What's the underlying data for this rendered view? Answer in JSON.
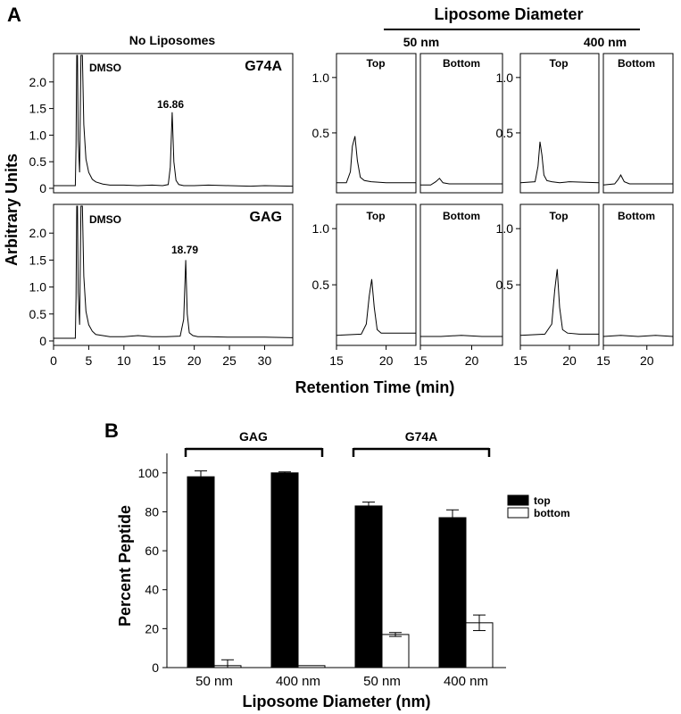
{
  "panel_a": {
    "letter": "A",
    "left_title": "No Liposomes",
    "right_title": "Liposome Diameter",
    "size_50": "50 nm",
    "size_400": "400 nm",
    "ylabel": "Arbitrary Units",
    "xlabel": "Retention Time (min)",
    "dmso_label": "DMSO",
    "top_label": "Top",
    "bottom_label": "Bottom",
    "rows": [
      {
        "peptide": "G74A",
        "peak_time": "16.86"
      },
      {
        "peptide": "GAG",
        "peak_time": "18.79"
      }
    ]
  },
  "panel_b": {
    "letter": "B",
    "group_gag": "GAG",
    "group_g74a": "G74A",
    "legend_top": "top",
    "legend_bottom": "bottom"
  },
  "chart_data": [
    {
      "id": "no-liposomes-g74a",
      "type": "line",
      "panel": "A",
      "xlim": [
        0,
        34
      ],
      "ylim": [
        0,
        2.5
      ],
      "xticks": [
        0,
        5,
        10,
        15,
        20,
        25,
        30
      ],
      "yticks": [
        0,
        0.5,
        1.0,
        1.5,
        2.0
      ],
      "ytick_labels": [
        "0",
        "0.5",
        "1.0",
        "1.5",
        "2.0"
      ],
      "series": [
        {
          "x": [
            0,
            3.1,
            3.2,
            3.3,
            3.4,
            3.5,
            3.7,
            3.9,
            4.1,
            4.3,
            4.6,
            5.0,
            5.5,
            6.0,
            7.0,
            8.0,
            10.0,
            12.0,
            14.0,
            15.5,
            16.3,
            16.6,
            16.86,
            17.1,
            17.4,
            17.8,
            18.5,
            20,
            22,
            25,
            28,
            30,
            34
          ],
          "y": [
            0.05,
            0.05,
            0.8,
            2.5,
            2.5,
            0.9,
            0.3,
            2.5,
            2.5,
            1.2,
            0.55,
            0.3,
            0.17,
            0.12,
            0.08,
            0.06,
            0.06,
            0.05,
            0.06,
            0.05,
            0.07,
            0.4,
            1.43,
            0.5,
            0.15,
            0.07,
            0.05,
            0.05,
            0.06,
            0.05,
            0.04,
            0.05,
            0.04
          ]
        }
      ]
    },
    {
      "id": "no-liposomes-gag",
      "type": "line",
      "panel": "A",
      "xlim": [
        0,
        34
      ],
      "ylim": [
        0,
        2.5
      ],
      "xticks": [
        0,
        5,
        10,
        15,
        20,
        25,
        30
      ],
      "yticks": [
        0,
        0.5,
        1.0,
        1.5,
        2.0
      ],
      "ytick_labels": [
        "0",
        "0.5",
        "1.0",
        "1.5",
        "2.0"
      ],
      "series": [
        {
          "x": [
            0,
            3.1,
            3.2,
            3.3,
            3.4,
            3.5,
            3.7,
            3.9,
            4.1,
            4.3,
            4.6,
            5.0,
            5.5,
            6.0,
            7.0,
            8.0,
            10.0,
            12.0,
            14.0,
            16.0,
            18.0,
            18.5,
            18.79,
            19.0,
            19.3,
            19.8,
            20.5,
            22,
            25,
            28,
            30,
            34
          ],
          "y": [
            0.05,
            0.05,
            0.8,
            2.5,
            2.5,
            0.9,
            0.3,
            2.5,
            2.5,
            1.2,
            0.55,
            0.3,
            0.18,
            0.12,
            0.1,
            0.08,
            0.08,
            0.1,
            0.08,
            0.08,
            0.09,
            0.4,
            1.5,
            0.5,
            0.15,
            0.1,
            0.08,
            0.08,
            0.07,
            0.07,
            0.07,
            0.06
          ]
        }
      ]
    },
    {
      "id": "g74a-50nm-top",
      "type": "line",
      "panel": "A",
      "xlim": [
        15,
        23
      ],
      "ylim": [
        0,
        1.2
      ],
      "xticks": [
        15,
        20
      ],
      "yticks": [
        0.5,
        1.0
      ],
      "ytick_labels": [
        "0.5",
        "1.0"
      ],
      "series": [
        {
          "x": [
            15,
            16.0,
            16.4,
            16.6,
            16.86,
            17.1,
            17.4,
            17.8,
            18.5,
            20,
            23
          ],
          "y": [
            0.05,
            0.05,
            0.15,
            0.38,
            0.47,
            0.25,
            0.1,
            0.07,
            0.06,
            0.05,
            0.05
          ]
        }
      ]
    },
    {
      "id": "g74a-50nm-bottom",
      "type": "line",
      "panel": "A",
      "xlim": [
        15,
        23
      ],
      "ylim": [
        0,
        1.2
      ],
      "xticks": [
        15,
        20
      ],
      "series": [
        {
          "x": [
            15,
            16.0,
            16.5,
            16.86,
            17.2,
            17.8,
            20,
            23
          ],
          "y": [
            0.03,
            0.03,
            0.06,
            0.09,
            0.05,
            0.04,
            0.04,
            0.04
          ]
        }
      ]
    },
    {
      "id": "g74a-400nm-top",
      "type": "line",
      "panel": "A",
      "xlim": [
        15,
        23
      ],
      "ylim": [
        0,
        1.2
      ],
      "xticks": [
        15,
        20
      ],
      "yticks": [
        0.5,
        1.0
      ],
      "ytick_labels": [
        "0.5",
        "1.0"
      ],
      "series": [
        {
          "x": [
            15,
            16.5,
            16.8,
            17.0,
            17.2,
            17.4,
            17.7,
            18.2,
            19,
            20,
            23
          ],
          "y": [
            0.05,
            0.06,
            0.2,
            0.42,
            0.3,
            0.12,
            0.07,
            0.06,
            0.05,
            0.06,
            0.05
          ]
        }
      ]
    },
    {
      "id": "g74a-400nm-bottom",
      "type": "line",
      "panel": "A",
      "xlim": [
        15,
        23
      ],
      "ylim": [
        0,
        1.2
      ],
      "xticks": [
        15,
        20
      ],
      "series": [
        {
          "x": [
            15,
            16.3,
            16.7,
            17.0,
            17.4,
            18.0,
            20,
            23
          ],
          "y": [
            0.03,
            0.04,
            0.08,
            0.12,
            0.06,
            0.04,
            0.04,
            0.04
          ]
        }
      ]
    },
    {
      "id": "gag-50nm-top",
      "type": "line",
      "panel": "A",
      "xlim": [
        15,
        23
      ],
      "ylim": [
        0,
        1.2
      ],
      "xticks": [
        15,
        20
      ],
      "yticks": [
        0.5,
        1.0
      ],
      "ytick_labels": [
        "0.5",
        "1.0"
      ],
      "series": [
        {
          "x": [
            15,
            17.5,
            18.0,
            18.3,
            18.55,
            18.8,
            19.1,
            19.5,
            20,
            21,
            23
          ],
          "y": [
            0.05,
            0.06,
            0.15,
            0.4,
            0.55,
            0.3,
            0.1,
            0.07,
            0.07,
            0.07,
            0.07
          ]
        }
      ]
    },
    {
      "id": "gag-50nm-bottom",
      "type": "line",
      "panel": "A",
      "xlim": [
        15,
        23
      ],
      "ylim": [
        0,
        1.2
      ],
      "xticks": [
        15,
        20
      ],
      "series": [
        {
          "x": [
            15,
            17,
            19,
            21,
            23
          ],
          "y": [
            0.04,
            0.04,
            0.05,
            0.04,
            0.04
          ]
        }
      ]
    },
    {
      "id": "gag-400nm-top",
      "type": "line",
      "panel": "A",
      "xlim": [
        15,
        23
      ],
      "ylim": [
        0,
        1.2
      ],
      "xticks": [
        15,
        20
      ],
      "yticks": [
        0.5,
        1.0
      ],
      "ytick_labels": [
        "0.5",
        "1.0"
      ],
      "series": [
        {
          "x": [
            15,
            17.5,
            18.2,
            18.5,
            18.75,
            19.0,
            19.3,
            19.8,
            21,
            23
          ],
          "y": [
            0.05,
            0.06,
            0.15,
            0.45,
            0.64,
            0.3,
            0.1,
            0.07,
            0.06,
            0.06
          ]
        }
      ]
    },
    {
      "id": "gag-400nm-bottom",
      "type": "line",
      "panel": "A",
      "xlim": [
        15,
        23
      ],
      "ylim": [
        0,
        1.2
      ],
      "xticks": [
        15,
        20
      ],
      "series": [
        {
          "x": [
            15,
            17,
            19,
            21,
            23
          ],
          "y": [
            0.04,
            0.05,
            0.04,
            0.05,
            0.04
          ]
        }
      ]
    },
    {
      "id": "percent-peptide",
      "type": "bar",
      "panel": "B",
      "categories": [
        "50 nm",
        "400 nm",
        "50 nm",
        "400 nm"
      ],
      "series": [
        {
          "name": "top",
          "color": "#000000",
          "values": [
            98,
            100,
            83,
            77
          ],
          "errors": [
            3,
            0.5,
            2,
            4
          ]
        },
        {
          "name": "bottom",
          "color": "#ffffff",
          "values": [
            1,
            1,
            17,
            23
          ],
          "errors": [
            3,
            0,
            1,
            4
          ]
        }
      ],
      "ylabel": "Percent Peptide",
      "xlabel": "Liposome Diameter (nm)",
      "ylim": [
        0,
        110
      ],
      "yticks": [
        0,
        20,
        40,
        60,
        80,
        100
      ],
      "legend": "right"
    }
  ]
}
